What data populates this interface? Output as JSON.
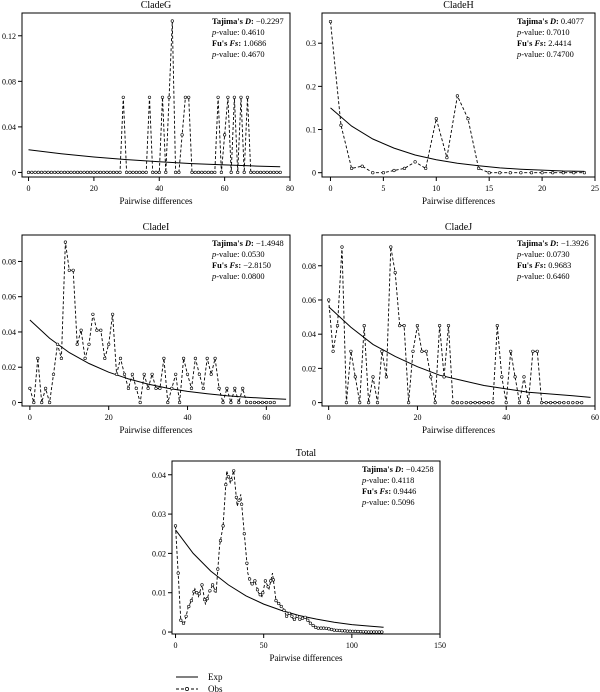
{
  "figure": {
    "legend": {
      "exp_label": "Exp",
      "obs_label": "Obs"
    }
  },
  "chart_data": [
    {
      "type": "line",
      "title": "CladeG",
      "xlabel": "Pairwise differences",
      "ylabel": "",
      "xlim": [
        -2,
        80
      ],
      "ylim": [
        -0.004,
        0.14
      ],
      "xticks": [
        0,
        20,
        40,
        60,
        80
      ],
      "yticks": [
        0,
        0.04,
        0.08,
        0.12
      ],
      "ytick_labels": [
        "0",
        "0.04",
        "0.08",
        "0.12"
      ],
      "stats": [
        {
          "label": "Tajima's ",
          "italic": "D",
          "sep": ": ",
          "value": "−0.2297"
        },
        {
          "label": "",
          "italic": "p",
          "sep": "-value: ",
          "value": "0.4610"
        },
        {
          "label": "Fu's ",
          "italic": "Fs",
          "sep": ": ",
          "value": "1.0686"
        },
        {
          "label": "",
          "italic": "p",
          "sep": "-value: ",
          "value": "0.4670"
        }
      ],
      "series": [
        {
          "name": "Exp",
          "style": "solid",
          "x": [
            0,
            10,
            20,
            30,
            40,
            50,
            60,
            70,
            77
          ],
          "y": [
            0.02,
            0.0165,
            0.0136,
            0.0113,
            0.0094,
            0.0078,
            0.0066,
            0.0056,
            0.005
          ]
        },
        {
          "name": "Obs",
          "style": "dashed",
          "x": [
            0,
            28,
            29,
            30,
            36,
            37,
            38,
            40,
            41,
            42,
            43,
            44,
            45,
            46,
            48,
            49,
            50,
            57,
            58,
            59,
            61,
            62,
            63,
            64,
            65,
            66,
            67,
            68,
            77
          ],
          "y": [
            0,
            0,
            0.066,
            0,
            0,
            0.066,
            0,
            0,
            0.066,
            0,
            0.066,
            0.133,
            0,
            0,
            0.066,
            0.066,
            0,
            0,
            0.066,
            0,
            0.066,
            0,
            0.066,
            0,
            0.066,
            0,
            0.066,
            0,
            0
          ]
        }
      ]
    },
    {
      "type": "line",
      "title": "CladeH",
      "xlabel": "Pairwise differences",
      "ylabel": "",
      "xlim": [
        -0.8,
        25
      ],
      "ylim": [
        -0.01,
        0.37
      ],
      "xticks": [
        0,
        5,
        10,
        15,
        20,
        25
      ],
      "yticks": [
        0,
        0.1,
        0.2,
        0.3
      ],
      "ytick_labels": [
        "0",
        "0.1",
        "0.2",
        "0.3"
      ],
      "stats": [
        {
          "label": "Tajima's ",
          "italic": "D",
          "sep": ": ",
          "value": "0.4077"
        },
        {
          "label": "",
          "italic": "p",
          "sep": "-value: ",
          "value": "0.7010"
        },
        {
          "label": "Fu's ",
          "italic": "Fs",
          "sep": ": ",
          "value": "2.4414"
        },
        {
          "label": "",
          "italic": "p",
          "sep": "-value: ",
          "value": "0.74700"
        }
      ],
      "series": [
        {
          "name": "Exp",
          "style": "solid",
          "x": [
            0,
            2,
            4,
            6,
            8,
            10,
            12,
            14,
            16,
            18,
            20,
            22,
            24
          ],
          "y": [
            0.15,
            0.108,
            0.078,
            0.057,
            0.041,
            0.03,
            0.022,
            0.016,
            0.011,
            0.008,
            0.006,
            0.004,
            0.003
          ]
        },
        {
          "name": "Obs",
          "style": "dashed",
          "x": [
            0,
            1,
            2,
            3,
            4,
            5,
            6,
            7,
            8,
            9,
            10,
            11,
            12,
            13,
            14,
            15,
            16,
            17,
            18,
            19,
            20,
            21,
            22,
            23,
            24
          ],
          "y": [
            0.35,
            0.11,
            0.01,
            0.015,
            0,
            0,
            0.005,
            0.01,
            0.025,
            0.01,
            0.125,
            0.035,
            0.178,
            0.125,
            0.01,
            0,
            0,
            0,
            0,
            0,
            0,
            0,
            0,
            0,
            0
          ]
        }
      ]
    },
    {
      "type": "line",
      "title": "CladeI",
      "xlabel": "Pairwise differences",
      "ylabel": "",
      "xlim": [
        -2,
        66
      ],
      "ylim": [
        -0.002,
        0.095
      ],
      "xticks": [
        0,
        20,
        40,
        60
      ],
      "yticks": [
        0,
        0.02,
        0.04,
        0.06,
        0.08
      ],
      "ytick_labels": [
        "0",
        "0.02",
        "0.04",
        "0.06",
        "0.08"
      ],
      "stats": [
        {
          "label": "Tajima's ",
          "italic": "D",
          "sep": ": ",
          "value": "−1.4948"
        },
        {
          "label": "",
          "italic": "p",
          "sep": "-value: ",
          "value": "0.0530"
        },
        {
          "label": "Fu's ",
          "italic": "Fs",
          "sep": ": ",
          "value": "−2.8150"
        },
        {
          "label": "",
          "italic": "p",
          "sep": "-value: ",
          "value": "0.0800"
        }
      ],
      "series": [
        {
          "name": "Exp",
          "style": "solid",
          "x": [
            0,
            5,
            10,
            15,
            20,
            25,
            30,
            35,
            40,
            45,
            50,
            55,
            60,
            65
          ],
          "y": [
            0.0468,
            0.0364,
            0.0283,
            0.0221,
            0.0172,
            0.0134,
            0.0104,
            0.0081,
            0.0063,
            0.0049,
            0.0038,
            0.003,
            0.0023,
            0.0018
          ]
        },
        {
          "name": "Obs",
          "style": "dashed",
          "x": [
            0,
            1,
            2,
            3,
            4,
            5,
            6,
            7,
            8,
            9,
            10,
            11,
            12,
            13,
            14,
            15,
            16,
            17,
            18,
            19,
            20,
            21,
            22,
            23,
            24,
            25,
            26,
            27,
            28,
            29,
            30,
            31,
            32,
            33,
            34,
            35,
            36,
            37,
            38,
            39,
            40,
            41,
            42,
            43,
            44,
            45,
            46,
            47,
            48,
            49,
            50,
            51,
            52,
            53,
            54,
            55,
            56,
            57,
            58,
            59,
            60,
            61,
            62
          ],
          "y": [
            0.008,
            0,
            0.025,
            0,
            0.008,
            0,
            0.016,
            0.033,
            0.025,
            0.091,
            0.075,
            0.075,
            0.033,
            0.041,
            0.025,
            0.033,
            0.05,
            0.041,
            0.041,
            0.025,
            0.033,
            0.05,
            0.016,
            0.025,
            0.016,
            0.008,
            0.016,
            0.008,
            0,
            0.016,
            0.008,
            0.016,
            0.008,
            0.008,
            0.025,
            0,
            0.008,
            0.016,
            0,
            0.025,
            0.016,
            0.008,
            0.025,
            0.016,
            0.008,
            0.025,
            0.016,
            0.025,
            0.008,
            0,
            0.008,
            0,
            0.008,
            0,
            0.008,
            0,
            0,
            0,
            0,
            0,
            0,
            0,
            0
          ]
        }
      ]
    },
    {
      "type": "line",
      "title": "CladeJ",
      "xlabel": "Pairwise differences",
      "ylabel": "",
      "xlim": [
        -1.5,
        60
      ],
      "ylim": [
        -0.002,
        0.098
      ],
      "xticks": [
        0,
        20,
        40,
        60
      ],
      "yticks": [
        0,
        0.02,
        0.04,
        0.06,
        0.08
      ],
      "ytick_labels": [
        "0",
        "0.02",
        "0.04",
        "0.06",
        "0.08"
      ],
      "stats": [
        {
          "label": "Tajima's ",
          "italic": "D",
          "sep": ": ",
          "value": "−1.3926"
        },
        {
          "label": "",
          "italic": "p",
          "sep": "-value: ",
          "value": "0.0730"
        },
        {
          "label": "Fu's ",
          "italic": "Fs",
          "sep": ": ",
          "value": "0.9683"
        },
        {
          "label": "",
          "italic": "p",
          "sep": "-value: ",
          "value": "0.6460"
        }
      ],
      "series": [
        {
          "name": "Exp",
          "style": "solid",
          "x": [
            0,
            5,
            10,
            15,
            20,
            25,
            30,
            35,
            40,
            45,
            50,
            55,
            59
          ],
          "y": [
            0.056,
            0.044,
            0.034,
            0.027,
            0.021,
            0.016,
            0.013,
            0.01,
            0.008,
            0.006,
            0.005,
            0.004,
            0.003
          ]
        },
        {
          "name": "Obs",
          "style": "dashed",
          "x": [
            0,
            1,
            2,
            3,
            4,
            5,
            6,
            7,
            8,
            9,
            10,
            11,
            12,
            13,
            14,
            15,
            16,
            17,
            18,
            19,
            20,
            21,
            22,
            23,
            24,
            25,
            26,
            27,
            28,
            29,
            30,
            31,
            32,
            33,
            34,
            35,
            36,
            37,
            38,
            39,
            40,
            41,
            42,
            43,
            44,
            45,
            46,
            47,
            48,
            49,
            50,
            51,
            52,
            53,
            54,
            55,
            56,
            57
          ],
          "y": [
            0.06,
            0.03,
            0.045,
            0.091,
            0,
            0.03,
            0.015,
            0,
            0.045,
            0,
            0.015,
            0,
            0.03,
            0.015,
            0.091,
            0.076,
            0.045,
            0.045,
            0,
            0.03,
            0.045,
            0.03,
            0.03,
            0.015,
            0,
            0.045,
            0.015,
            0.045,
            0,
            0,
            0,
            0,
            0,
            0,
            0,
            0,
            0,
            0,
            0.045,
            0.015,
            0,
            0.03,
            0.015,
            0,
            0.015,
            0,
            0.03,
            0.03,
            0,
            0,
            0,
            0,
            0,
            0,
            0,
            0,
            0,
            0
          ]
        }
      ]
    },
    {
      "type": "line",
      "title": "Total",
      "xlabel": "Pairwise differences",
      "ylabel": "",
      "xlim": [
        -2,
        150
      ],
      "ylim": [
        -0.0005,
        0.0435
      ],
      "xticks": [
        0,
        50,
        100,
        150
      ],
      "yticks": [
        0,
        0.01,
        0.02,
        0.03,
        0.04
      ],
      "ytick_labels": [
        "0",
        "0.01",
        "0.02",
        "0.03",
        "0.04"
      ],
      "stats": [
        {
          "label": "Tajima's ",
          "italic": "D",
          "sep": ": ",
          "value": "−0.4258"
        },
        {
          "label": "",
          "italic": "p",
          "sep": "-value: ",
          "value": "0.4118"
        },
        {
          "label": "Fu's ",
          "italic": "Fs",
          "sep": ": ",
          "value": "0.9446"
        },
        {
          "label": "",
          "italic": "p",
          "sep": "-value: ",
          "value": "0.5096"
        }
      ],
      "series": [
        {
          "name": "Exp",
          "style": "solid",
          "x": [
            0,
            10,
            20,
            30,
            40,
            50,
            60,
            70,
            80,
            90,
            100,
            110,
            118
          ],
          "y": [
            0.026,
            0.02,
            0.0155,
            0.012,
            0.0092,
            0.0071,
            0.0055,
            0.0042,
            0.0033,
            0.0025,
            0.0019,
            0.0015,
            0.0012
          ]
        },
        {
          "name": "Obs",
          "style": "dashed",
          "x": [
            0,
            3,
            5,
            7,
            9,
            11,
            13,
            15,
            17,
            19,
            21,
            23,
            25,
            27,
            29,
            31,
            33,
            35,
            37,
            39,
            41,
            43,
            45,
            47,
            49,
            51,
            53,
            55,
            57,
            59,
            61,
            63,
            65,
            67,
            69,
            71,
            73,
            75,
            77,
            80,
            85,
            90,
            95,
            100,
            105,
            110,
            118
          ],
          "y": [
            0.027,
            0.003,
            0.002,
            0.006,
            0.008,
            0.011,
            0.009,
            0.012,
            0.007,
            0.01,
            0.012,
            0.01,
            0.022,
            0.027,
            0.041,
            0.038,
            0.041,
            0.032,
            0.035,
            0.025,
            0.015,
            0.012,
            0.013,
            0.01,
            0.009,
            0.013,
            0.011,
            0.015,
            0.008,
            0.007,
            0.006,
            0.004,
            0.005,
            0.003,
            0.004,
            0.003,
            0.004,
            0.003,
            0.002,
            0.001,
            0.001,
            0.0005,
            0.0003,
            0.0002,
            0.0001,
            0,
            0
          ]
        }
      ]
    }
  ]
}
